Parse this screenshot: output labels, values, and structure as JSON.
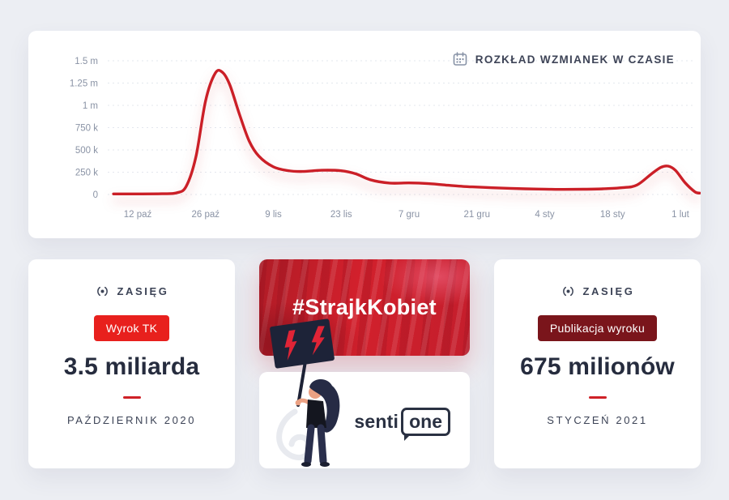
{
  "page": {
    "background": "#eceef3"
  },
  "chart_data": {
    "type": "line",
    "title": "ROZKŁAD WZMIANEK W CZASIE",
    "legend": "none",
    "grid": "horizontal-dashed",
    "y_domain_k": [
      0,
      1500
    ],
    "x_domain_days": [
      -5,
      116
    ],
    "y_ticks": [
      {
        "v": 0,
        "label": "0"
      },
      {
        "v": 250,
        "label": "250 k"
      },
      {
        "v": 500,
        "label": "500 k"
      },
      {
        "v": 750,
        "label": "750 k"
      },
      {
        "v": 1000,
        "label": "1 m"
      },
      {
        "v": 1250,
        "label": "1.25 m"
      },
      {
        "v": 1500,
        "label": "1.5 m"
      }
    ],
    "x_ticks": [
      {
        "d": 0,
        "label": "12 paź"
      },
      {
        "d": 14,
        "label": "26 paź"
      },
      {
        "d": 28,
        "label": "9 lis"
      },
      {
        "d": 42,
        "label": "23 lis"
      },
      {
        "d": 56,
        "label": "7 gru"
      },
      {
        "d": 70,
        "label": "21 gru"
      },
      {
        "d": 84,
        "label": "4 sty"
      },
      {
        "d": 98,
        "label": "18 sty"
      },
      {
        "d": 112,
        "label": "1 lut"
      }
    ],
    "series": [
      {
        "name": "wzmianki",
        "color": "#cb1f27",
        "points_day_valueK": [
          [
            -5,
            6
          ],
          [
            0,
            6
          ],
          [
            5,
            8
          ],
          [
            8,
            18
          ],
          [
            10,
            90
          ],
          [
            12,
            420
          ],
          [
            14,
            1050
          ],
          [
            16,
            1360
          ],
          [
            17.5,
            1370
          ],
          [
            19,
            1230
          ],
          [
            21,
            900
          ],
          [
            23,
            600
          ],
          [
            25,
            430
          ],
          [
            28,
            310
          ],
          [
            31,
            268
          ],
          [
            34,
            258
          ],
          [
            38,
            272
          ],
          [
            42,
            266
          ],
          [
            45,
            232
          ],
          [
            48,
            165
          ],
          [
            52,
            128
          ],
          [
            56,
            130
          ],
          [
            60,
            122
          ],
          [
            64,
            104
          ],
          [
            68,
            88
          ],
          [
            70,
            84
          ],
          [
            75,
            72
          ],
          [
            80,
            64
          ],
          [
            84,
            60
          ],
          [
            88,
            57
          ],
          [
            92,
            59
          ],
          [
            96,
            64
          ],
          [
            100,
            76
          ],
          [
            103,
            105
          ],
          [
            106,
            230
          ],
          [
            108,
            305
          ],
          [
            109.5,
            318
          ],
          [
            111,
            270
          ],
          [
            113,
            130
          ],
          [
            115,
            30
          ],
          [
            116,
            15
          ]
        ]
      }
    ]
  },
  "reach_left": {
    "section": "ZASIĘG",
    "badge": "Wyrok TK",
    "badge_color": "#e8201d",
    "value": "3.5 miliarda",
    "period": "PAŹDZIERNIK 2020"
  },
  "center": {
    "hashtag": "#StrajkKobiet",
    "logo": {
      "left": "senti",
      "right": "one"
    }
  },
  "reach_right": {
    "section": "ZASIĘG",
    "badge": "Publikacja wyroku",
    "badge_color": "#7a151b",
    "value": "675 milionów",
    "period": "STYCZEŃ 2021"
  }
}
